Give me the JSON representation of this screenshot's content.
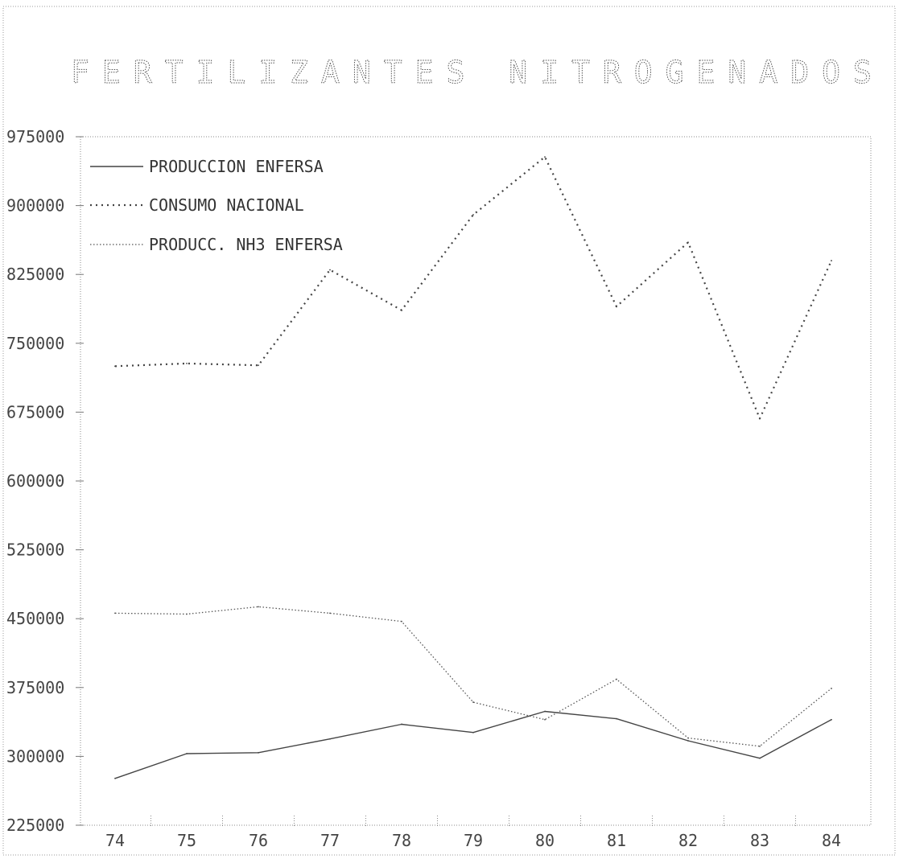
{
  "chart_data": {
    "type": "line",
    "title": "FERTILIZANTES NITROGENADOS",
    "xlabel": "",
    "ylabel": "",
    "categories": [
      "74",
      "75",
      "76",
      "77",
      "78",
      "79",
      "80",
      "81",
      "82",
      "83",
      "84"
    ],
    "ylim": [
      225000,
      975000
    ],
    "yticks": [
      "225000",
      "300000",
      "375000",
      "450000",
      "525000",
      "600000",
      "675000",
      "750000",
      "825000",
      "900000",
      "975000"
    ],
    "legend_position": "top-left",
    "grid": false,
    "series": [
      {
        "name": "PRODUCCION ENFERSA",
        "style": "solid",
        "values": [
          276000,
          303000,
          304000,
          319000,
          335000,
          326000,
          349000,
          341000,
          317000,
          298000,
          340000
        ]
      },
      {
        "name": "CONSUMO NACIONAL",
        "style": "dense-dotted",
        "values": [
          725000,
          728000,
          726000,
          830000,
          786000,
          890000,
          953000,
          790000,
          860000,
          668000,
          840000
        ]
      },
      {
        "name": "PRODUCC. NH3 ENFERSA",
        "style": "dotted",
        "values": [
          456000,
          455000,
          463000,
          456000,
          447000,
          359000,
          340000,
          384000,
          320000,
          311000,
          374000
        ]
      }
    ]
  }
}
